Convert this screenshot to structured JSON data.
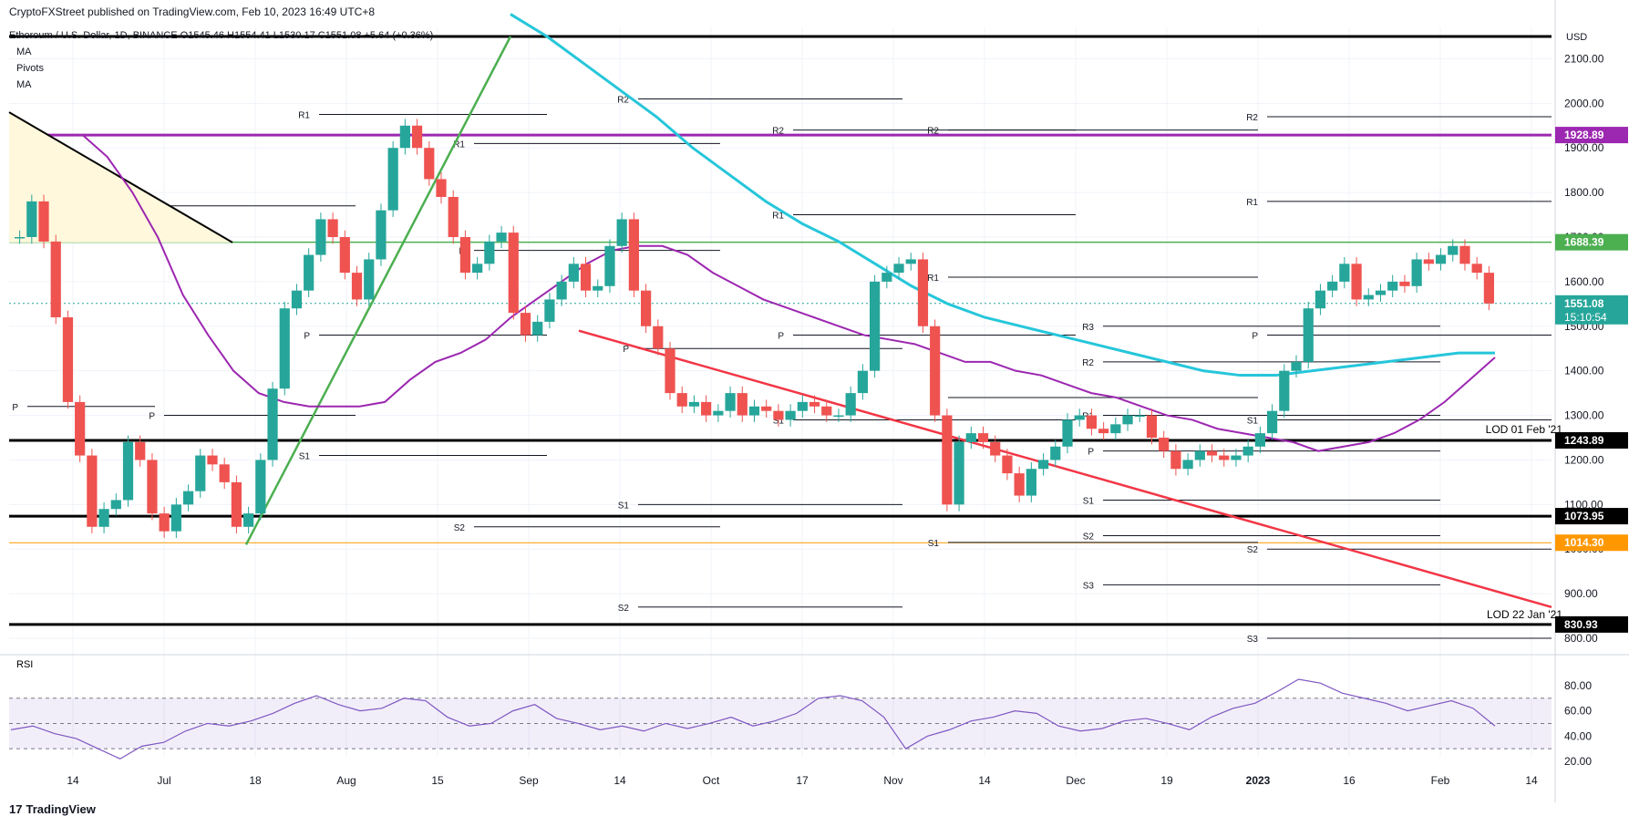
{
  "header": {
    "publisher": "CryptoFXStreet published on TradingView.com, Feb 10, 2023 16:49 UTC+8"
  },
  "legend": {
    "symbol_line": "Ethereum / U.S. Dollar, 1D, BINANCE  O1545.46  H1554.41  L1530.17  C1551.08  +5.64 (+0.36%)",
    "indicators": [
      "MA",
      "Pivots",
      "MA"
    ]
  },
  "footer": {
    "logo_text": "TradingView"
  },
  "rsi": {
    "label": "RSI",
    "ticks": [
      "80.00",
      "60.00",
      "40.00",
      "20.00"
    ]
  },
  "annotations": {
    "lod_feb21": "LOD 01 Feb '21",
    "lod_jan21": "LOD 22 Jan '21"
  },
  "colors": {
    "up": "#26a69a",
    "down": "#ef5350",
    "ma_fast": "#9c27b0",
    "ma_slow": "#26c6da",
    "trend_up": "#4caf50",
    "trend_down": "#f23645",
    "purple_level": "#9c27b0",
    "green_level": "#4caf50",
    "orange_level": "#ff9800",
    "rsi": "#7e57c2"
  },
  "chart_data": {
    "type": "candlestick",
    "title": "Ethereum / U.S. Dollar, 1D, BINANCE",
    "currency": "USD",
    "y_axis_ticks": [
      2100,
      2000,
      1900,
      1800,
      1700,
      1600,
      1500,
      1400,
      1300,
      1200,
      1100,
      1000,
      900,
      800
    ],
    "x_axis_ticks": [
      "14",
      "Jul",
      "18",
      "Aug",
      "15",
      "Sep",
      "14",
      "Oct",
      "17",
      "Nov",
      "14",
      "Dec",
      "19",
      "2023",
      "16",
      "Feb",
      "14"
    ],
    "price_labels": [
      {
        "value": "1928.89",
        "color": "#9c27b0"
      },
      {
        "value": "1688.39",
        "color": "#4caf50"
      },
      {
        "value": "1551.08",
        "color": "#26a69a",
        "sub": "15:10:54"
      },
      {
        "value": "1243.89",
        "color": "#000000"
      },
      {
        "value": "1073.95",
        "color": "#000000"
      },
      {
        "value": "1014.30",
        "color": "#ff9800"
      },
      {
        "value": "830.93",
        "color": "#000000"
      }
    ],
    "horizontal_levels": [
      2150,
      1928.89,
      1688.39,
      1243.89,
      1073.95,
      1014.3,
      830.93
    ],
    "close_series": [
      1700,
      1780,
      1690,
      1520,
      1330,
      1210,
      1050,
      1090,
      1110,
      1240,
      1200,
      1080,
      1040,
      1100,
      1130,
      1210,
      1190,
      1150,
      1050,
      1080,
      1200,
      1360,
      1540,
      1580,
      1660,
      1740,
      1700,
      1620,
      1560,
      1650,
      1760,
      1900,
      1950,
      1900,
      1830,
      1790,
      1700,
      1620,
      1640,
      1690,
      1710,
      1530,
      1480,
      1510,
      1560,
      1600,
      1640,
      1580,
      1590,
      1680,
      1740,
      1580,
      1500,
      1450,
      1350,
      1320,
      1330,
      1300,
      1310,
      1350,
      1300,
      1320,
      1310,
      1290,
      1310,
      1330,
      1320,
      1300,
      1300,
      1350,
      1400,
      1600,
      1620,
      1640,
      1650,
      1500,
      1300,
      1100,
      1240,
      1260,
      1240,
      1210,
      1170,
      1120,
      1180,
      1200,
      1230,
      1290,
      1300,
      1270,
      1260,
      1280,
      1300,
      1300,
      1250,
      1220,
      1180,
      1200,
      1220,
      1210,
      1200,
      1210,
      1230,
      1260,
      1310,
      1400,
      1420,
      1540,
      1580,
      1600,
      1640,
      1560,
      1570,
      1580,
      1600,
      1590,
      1650,
      1640,
      1660,
      1680,
      1640,
      1620,
      1551
    ],
    "ma_fast_series": [
      1930,
      1880,
      1800,
      1700,
      1570,
      1480,
      1400,
      1350,
      1330,
      1320,
      1320,
      1320,
      1330,
      1380,
      1420,
      1440,
      1470,
      1520,
      1560,
      1600,
      1640,
      1670,
      1680,
      1680,
      1660,
      1620,
      1590,
      1560,
      1540,
      1520,
      1500,
      1480,
      1470,
      1460,
      1440,
      1420,
      1420,
      1400,
      1390,
      1370,
      1350,
      1340,
      1320,
      1300,
      1290,
      1270,
      1260,
      1250,
      1240,
      1220,
      1230,
      1240,
      1260,
      1290,
      1330,
      1380,
      1430
    ],
    "ma_slow_series": [
      2200,
      2150,
      2090,
      2030,
      1970,
      1900,
      1840,
      1780,
      1730,
      1690,
      1640,
      1590,
      1550,
      1520,
      1500,
      1480,
      1460,
      1440,
      1420,
      1400,
      1390,
      1390,
      1400,
      1410,
      1420,
      1430,
      1440,
      1440
    ],
    "rsi_series": [
      45,
      48,
      42,
      38,
      30,
      22,
      32,
      35,
      44,
      50,
      48,
      52,
      58,
      66,
      72,
      65,
      60,
      62,
      70,
      68,
      55,
      48,
      50,
      60,
      65,
      54,
      50,
      45,
      48,
      44,
      50,
      46,
      50,
      55,
      48,
      52,
      58,
      70,
      72,
      68,
      55,
      30,
      40,
      45,
      52,
      55,
      60,
      58,
      48,
      44,
      46,
      52,
      54,
      50,
      45,
      55,
      62,
      66,
      75,
      85,
      82,
      74,
      70,
      66,
      60,
      64,
      68,
      62,
      48
    ]
  }
}
